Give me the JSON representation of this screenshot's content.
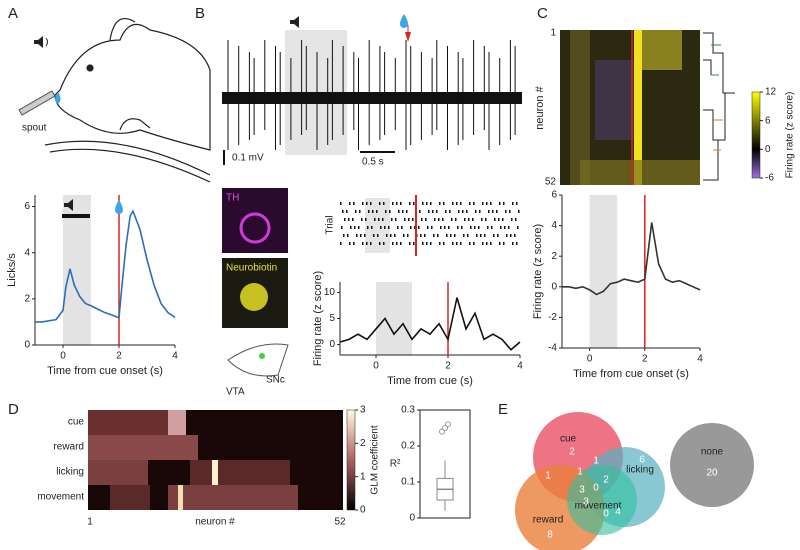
{
  "panels": [
    "A",
    "B",
    "C",
    "D",
    "E"
  ],
  "panel_a": {
    "spout": "spout"
  },
  "panel_b": {
    "scale_v": "0.1 mV",
    "scale_t": "0.5 s",
    "stain1": "TH",
    "stain2": "Neurobiotin",
    "region1": "VTA",
    "region2": "SNc",
    "raster_label": "Trial"
  },
  "chart_data": [
    {
      "type": "line",
      "ylabel": "Licks/s",
      "xlabel": "Time from cue onset (s)",
      "xlim": [
        -1,
        4
      ],
      "xticks": [
        0,
        2,
        4
      ],
      "ylim": [
        0,
        6.5
      ],
      "yticks": [
        0,
        2,
        4,
        6
      ],
      "shade": [
        0,
        1
      ],
      "event": 2,
      "color": "#2a6ebd",
      "x": [
        -1,
        -0.75,
        -0.5,
        -0.25,
        0,
        0.1,
        0.25,
        0.4,
        0.6,
        0.8,
        1,
        1.25,
        1.5,
        1.75,
        1.95,
        2,
        2.1,
        2.25,
        2.4,
        2.5,
        2.75,
        3,
        3.25,
        3.5,
        3.75,
        4
      ],
      "values": [
        1,
        1,
        1.05,
        1.1,
        1.5,
        2.5,
        3.3,
        2.6,
        2.1,
        1.8,
        1.7,
        1.55,
        1.4,
        1.3,
        1.2,
        1.2,
        2.5,
        4.3,
        5.6,
        5.8,
        5.0,
        3.7,
        2.6,
        1.8,
        1.4,
        1.2
      ]
    },
    {
      "type": "line",
      "ylabel": "Firing rate (z score)",
      "xlabel": "Time from cue (s)",
      "xlim": [
        -1,
        4
      ],
      "xticks": [
        0,
        2,
        4
      ],
      "ylim": [
        -2,
        12
      ],
      "yticks": [
        0,
        5,
        10
      ],
      "shade": [
        0,
        1
      ],
      "event": 2,
      "color": "#111111",
      "x": [
        -1,
        -0.75,
        -0.5,
        -0.25,
        0,
        0.25,
        0.5,
        0.75,
        1,
        1.25,
        1.5,
        1.75,
        2,
        2.25,
        2.5,
        2.75,
        3,
        3.25,
        3.5,
        3.75,
        4
      ],
      "values": [
        0.5,
        1,
        2,
        1,
        3,
        5,
        2,
        4,
        1,
        3,
        2,
        4,
        1,
        9,
        3,
        6,
        1,
        2,
        1,
        -1,
        0.5
      ]
    },
    {
      "type": "line",
      "ylabel": "Firing rate (z score)",
      "xlabel": "Time from cue onset (s)",
      "xlim": [
        -1,
        4
      ],
      "xticks": [
        0,
        2,
        4
      ],
      "ylim": [
        -4,
        6
      ],
      "yticks": [
        -4,
        -2,
        0,
        2,
        4,
        6
      ],
      "shade": [
        0,
        1
      ],
      "event": 2,
      "color": "#333333",
      "x": [
        -1,
        -0.75,
        -0.5,
        -0.25,
        0,
        0.25,
        0.5,
        0.75,
        1,
        1.25,
        1.5,
        1.75,
        2,
        2.25,
        2.5,
        2.75,
        3,
        3.25,
        3.5,
        3.75,
        4
      ],
      "values": [
        0,
        0,
        -0.1,
        0,
        -0.2,
        -0.5,
        -0.3,
        0.2,
        0.3,
        0.5,
        0.4,
        0.3,
        0.5,
        4.2,
        1.5,
        0.5,
        0.3,
        0.4,
        0.2,
        0,
        -0.2
      ]
    },
    {
      "type": "heatmap",
      "ylabel": "neuron #",
      "yticks": [
        1,
        52
      ],
      "colorbar_label": "Firing rate (z score)",
      "clim": [
        -6,
        12
      ],
      "cticks": [
        -6,
        0,
        6,
        12
      ]
    },
    {
      "type": "heatmap",
      "categories": [
        "cue",
        "reward",
        "licking",
        "movement"
      ],
      "xlabel": "neuron #",
      "xticks": [
        1,
        52
      ],
      "colorbar_label": "GLM coefficient",
      "clim": [
        0,
        3
      ],
      "cticks": [
        0,
        1,
        2,
        3
      ]
    },
    {
      "type": "box",
      "ylabel": "R²",
      "ylim": [
        0,
        0.3
      ],
      "yticks": [
        0,
        0.1,
        0.2,
        0.3
      ],
      "min": 0.02,
      "q1": 0.05,
      "median": 0.08,
      "q3": 0.11,
      "max": 0.16,
      "outliers": [
        0.24,
        0.25,
        0.26
      ]
    }
  ],
  "venn": {
    "labels": [
      "cue",
      "licking",
      "reward",
      "movement",
      "none"
    ],
    "counts": [
      2,
      6,
      8,
      4,
      1,
      1,
      2,
      3,
      1,
      3,
      0,
      0,
      1,
      20
    ]
  }
}
